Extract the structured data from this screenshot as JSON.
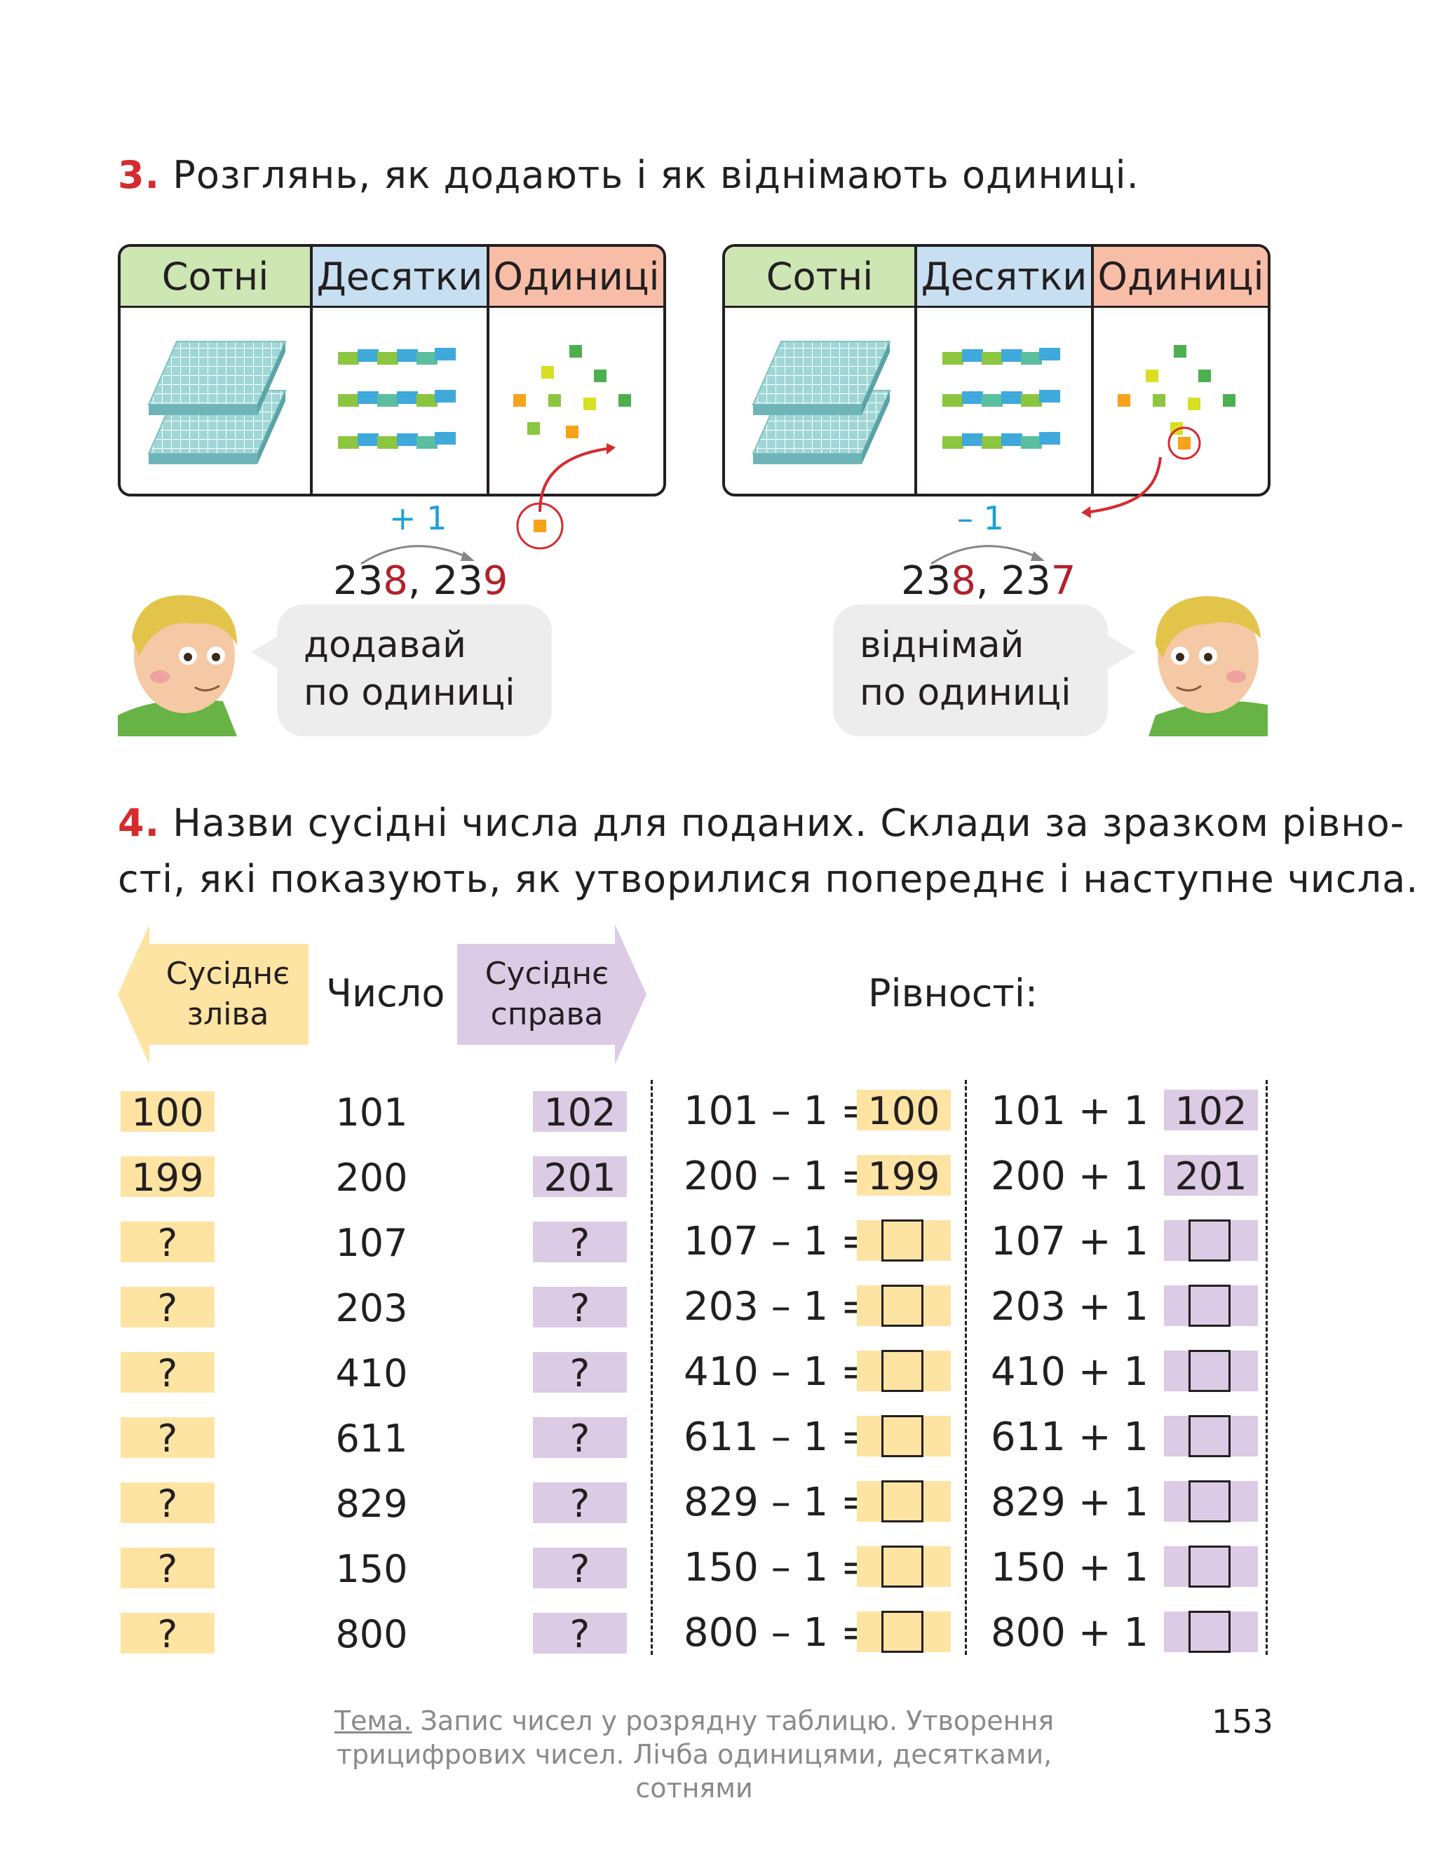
{
  "task3": {
    "number": "3.",
    "text": "Розглянь, як додають і як віднімають одиниці.",
    "headers": {
      "hundreds": "Сотні",
      "tens": "Десятки",
      "ones": "Одиниці"
    },
    "left": {
      "op": "+ 1",
      "seq_a": "23",
      "seq_a_digit": "8",
      "seq_sep": ", ",
      "seq_b": "23",
      "seq_b_digit": "9",
      "bubble_line1": "додавай",
      "bubble_line2": "по одиниці"
    },
    "right": {
      "op": "– 1",
      "seq_a": "23",
      "seq_a_digit": "8",
      "seq_sep": ", ",
      "seq_b": "23",
      "seq_b_digit": "7",
      "bubble_line1": "віднімай",
      "bubble_line2": "по одиниці"
    }
  },
  "task4": {
    "number": "4.",
    "line1": "Назви сусідні числа для поданих. Склади за зразком рівно-",
    "line2": "сті, які показують, як утворилися попереднє і наступне числа.",
    "header_left_1": "Сусіднє",
    "header_left_2": "зліва",
    "header_number": "Число",
    "header_right_1": "Сусіднє",
    "header_right_2": "справа",
    "header_equations": "Рівності:",
    "rows": [
      {
        "left": "100",
        "number": "101",
        "right": "102",
        "minus": "101 – 1 =",
        "minus_ans": "100",
        "plus": "101 + 1 =",
        "plus_ans": "102"
      },
      {
        "left": "199",
        "number": "200",
        "right": "201",
        "minus": "200 – 1 =",
        "minus_ans": "199",
        "plus": "200 + 1 =",
        "plus_ans": "201"
      },
      {
        "left": "?",
        "number": "107",
        "right": "?",
        "minus": "107 – 1 =",
        "minus_ans": "",
        "plus": "107 + 1 =",
        "plus_ans": ""
      },
      {
        "left": "?",
        "number": "203",
        "right": "?",
        "minus": "203 – 1 =",
        "minus_ans": "",
        "plus": "203 + 1 =",
        "plus_ans": ""
      },
      {
        "left": "?",
        "number": "410",
        "right": "?",
        "minus": "410 – 1 =",
        "minus_ans": "",
        "plus": "410 + 1 =",
        "plus_ans": ""
      },
      {
        "left": "?",
        "number": "611",
        "right": "?",
        "minus": "611 – 1 =",
        "minus_ans": "",
        "plus": "611 + 1 =",
        "plus_ans": ""
      },
      {
        "left": "?",
        "number": "829",
        "right": "?",
        "minus": "829 – 1 =",
        "minus_ans": "",
        "plus": "829 + 1 =",
        "plus_ans": ""
      },
      {
        "left": "?",
        "number": "150",
        "right": "?",
        "minus": "150 – 1 =",
        "minus_ans": "",
        "plus": "150 + 1 =",
        "plus_ans": ""
      },
      {
        "left": "?",
        "number": "800",
        "right": "?",
        "minus": "800 – 1 =",
        "minus_ans": "",
        "plus": "800 + 1 =",
        "plus_ans": ""
      }
    ]
  },
  "footer": {
    "topic_label": "Тема.",
    "topic_line1": " Запис чисел у розрядну таблицю. Утворення",
    "topic_line2": "трицифрових чисел. Лічба одиницями, десятками, сотнями",
    "page_number": "153"
  },
  "colors": {
    "task_red": "#d52b2f",
    "hundreds_green": "#cde6b4",
    "tens_blue": "#c8dff2",
    "ones_salmon": "#f8bda7",
    "yellow": "#fde4a3",
    "purple": "#dccbe5",
    "op_blue": "#1aa0d8",
    "digit_red": "#b3202a"
  }
}
